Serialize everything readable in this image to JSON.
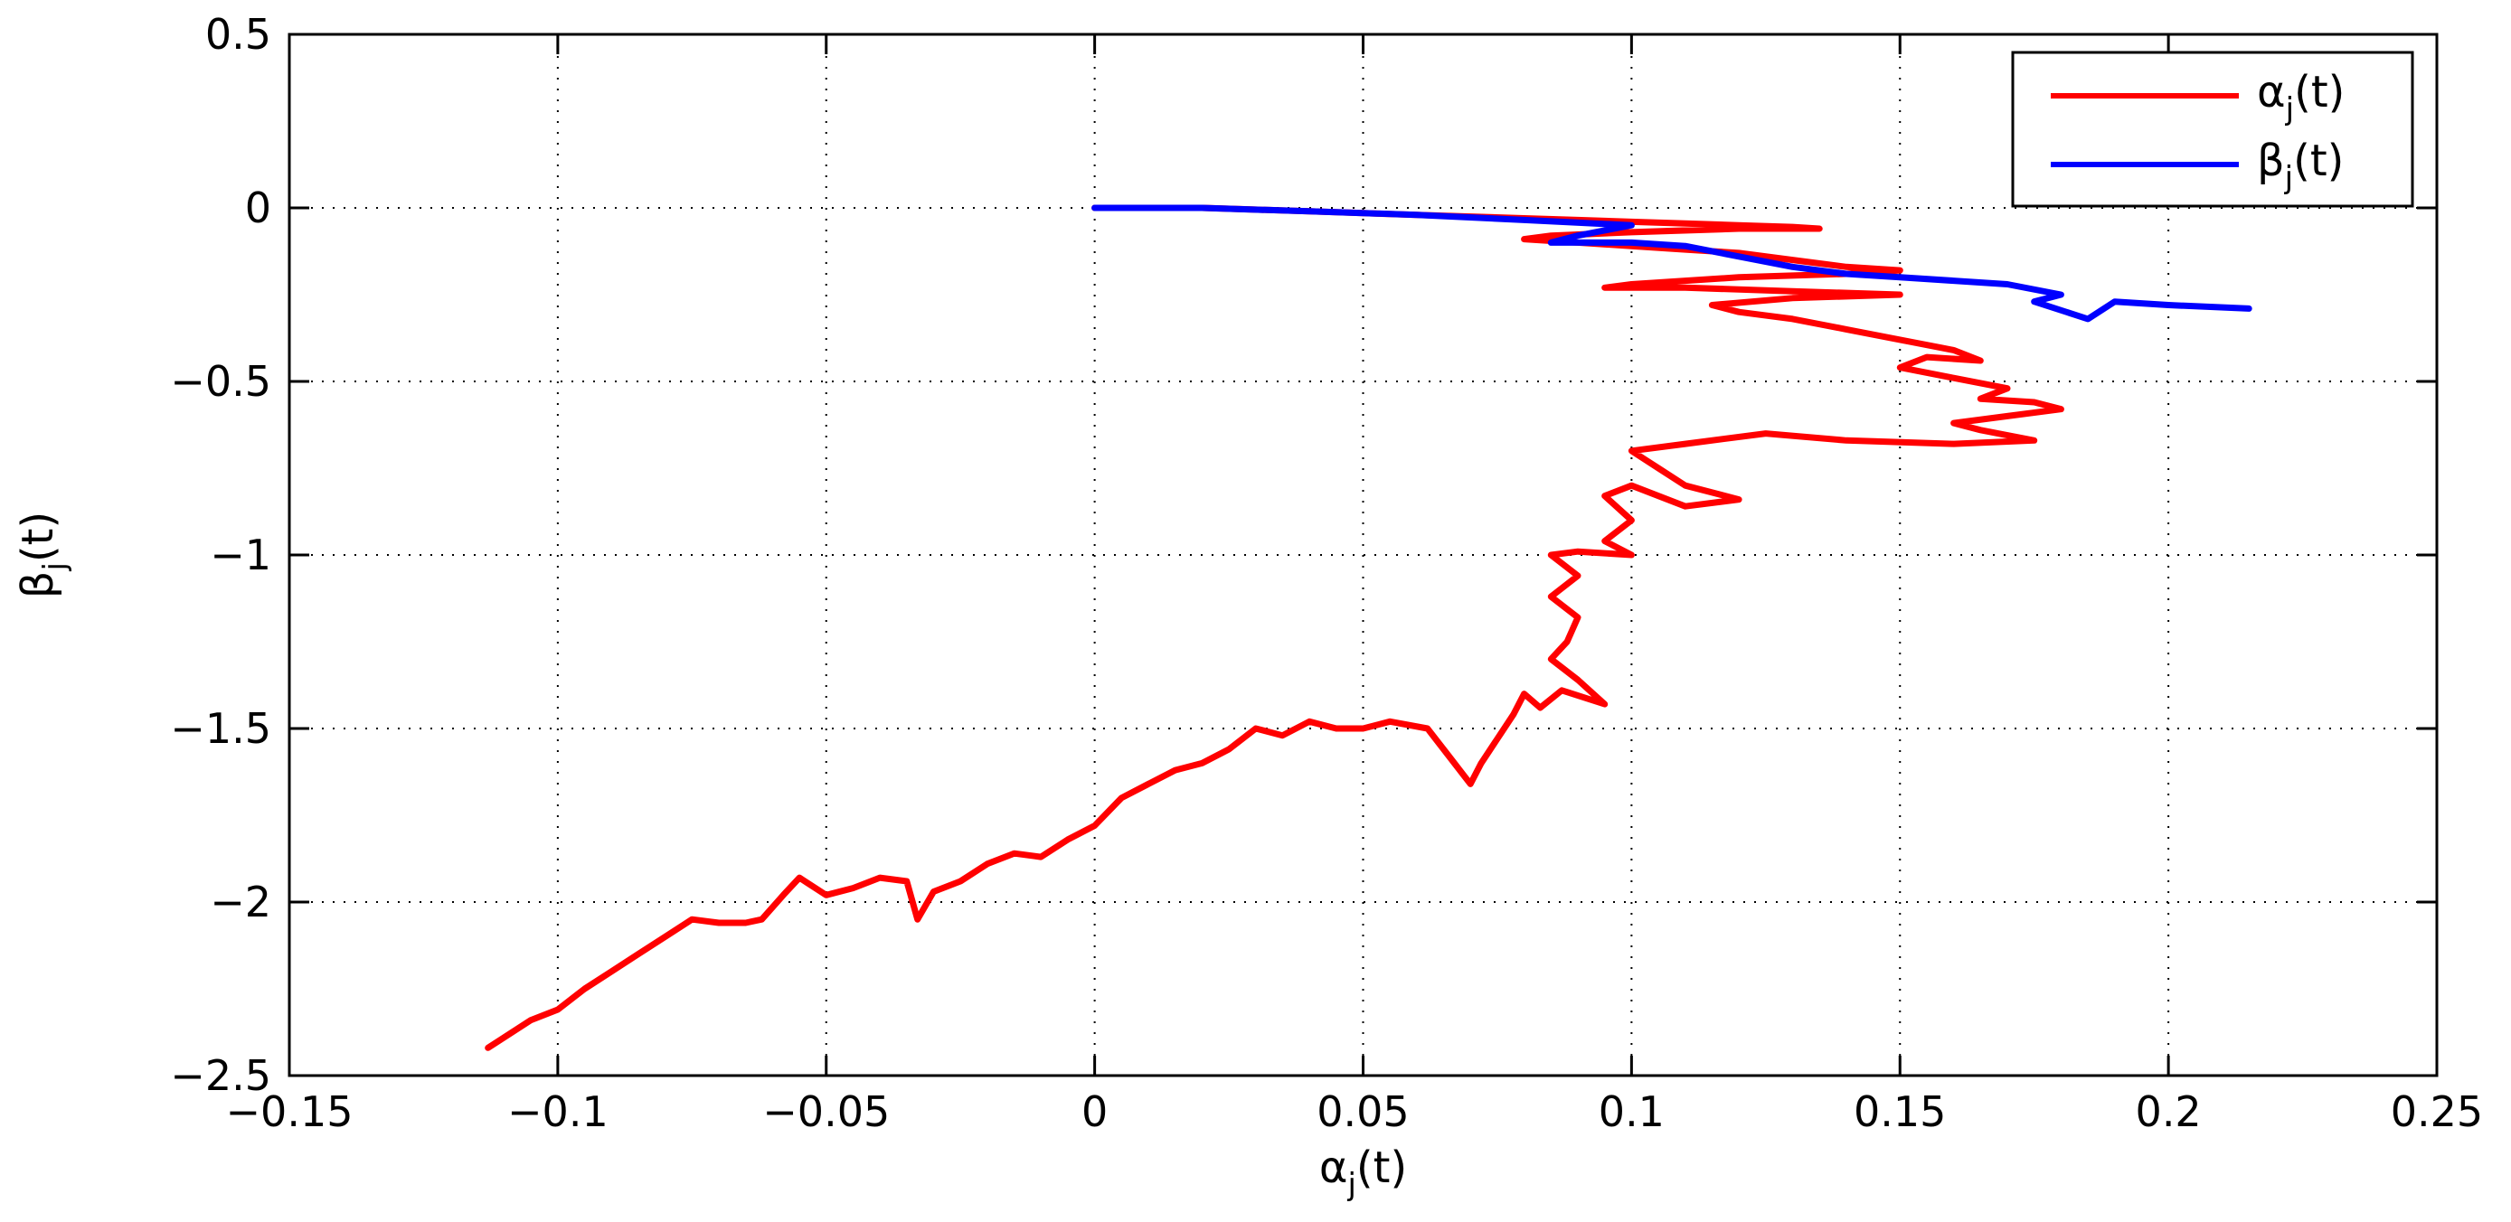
{
  "chart_data": {
    "type": "line",
    "title": "",
    "xlabel_parts": {
      "symbol": "α",
      "sub": "j",
      "rest": "(t)"
    },
    "ylabel_parts": {
      "symbol": "β",
      "sub": "j",
      "rest": "(t)"
    },
    "xlim": [
      -0.15,
      0.25
    ],
    "ylim": [
      -2.5,
      0.5
    ],
    "x_ticks": [
      -0.15,
      -0.1,
      -0.05,
      0,
      0.05,
      0.1,
      0.15,
      0.2,
      0.25
    ],
    "x_tick_labels": [
      "−0.15",
      "−0.1",
      "−0.05",
      "0",
      "0.05",
      "0.1",
      "0.15",
      "0.2",
      "0.25"
    ],
    "y_ticks": [
      0.5,
      0,
      -0.5,
      -1,
      -1.5,
      -2,
      -2.5
    ],
    "y_tick_labels": [
      "0.5",
      "0",
      "−0.5",
      "−1",
      "−1.5",
      "−2",
      "−2.5"
    ],
    "grid": true,
    "legend_position": "top-right",
    "series": [
      {
        "name_parts": {
          "symbol": "α",
          "sub": "j",
          "rest": "(t)"
        },
        "color": "#ff0000",
        "points": [
          [
            0.0,
            0.0
          ],
          [
            0.01,
            0.0
          ],
          [
            0.02,
            0.0
          ],
          [
            0.03,
            -0.005
          ],
          [
            0.04,
            -0.01
          ],
          [
            0.05,
            -0.015
          ],
          [
            0.06,
            -0.02
          ],
          [
            0.07,
            -0.025
          ],
          [
            0.08,
            -0.03
          ],
          [
            0.09,
            -0.035
          ],
          [
            0.1,
            -0.04
          ],
          [
            0.11,
            -0.045
          ],
          [
            0.12,
            -0.05
          ],
          [
            0.13,
            -0.055
          ],
          [
            0.135,
            -0.06
          ],
          [
            0.12,
            -0.06
          ],
          [
            0.1,
            -0.07
          ],
          [
            0.085,
            -0.08
          ],
          [
            0.08,
            -0.09
          ],
          [
            0.09,
            -0.1
          ],
          [
            0.1,
            -0.11
          ],
          [
            0.11,
            -0.12
          ],
          [
            0.12,
            -0.13
          ],
          [
            0.13,
            -0.15
          ],
          [
            0.14,
            -0.17
          ],
          [
            0.15,
            -0.18
          ],
          [
            0.14,
            -0.19
          ],
          [
            0.12,
            -0.2
          ],
          [
            0.11,
            -0.21
          ],
          [
            0.1,
            -0.22
          ],
          [
            0.095,
            -0.23
          ],
          [
            0.11,
            -0.23
          ],
          [
            0.13,
            -0.24
          ],
          [
            0.15,
            -0.25
          ],
          [
            0.13,
            -0.26
          ],
          [
            0.115,
            -0.28
          ],
          [
            0.12,
            -0.3
          ],
          [
            0.13,
            -0.32
          ],
          [
            0.14,
            -0.35
          ],
          [
            0.15,
            -0.38
          ],
          [
            0.16,
            -0.41
          ],
          [
            0.165,
            -0.44
          ],
          [
            0.155,
            -0.43
          ],
          [
            0.15,
            -0.46
          ],
          [
            0.16,
            -0.49
          ],
          [
            0.17,
            -0.52
          ],
          [
            0.165,
            -0.55
          ],
          [
            0.175,
            -0.56
          ],
          [
            0.18,
            -0.58
          ],
          [
            0.17,
            -0.6
          ],
          [
            0.16,
            -0.62
          ],
          [
            0.165,
            -0.64
          ],
          [
            0.175,
            -0.67
          ],
          [
            0.16,
            -0.68
          ],
          [
            0.14,
            -0.67
          ],
          [
            0.125,
            -0.65
          ],
          [
            0.11,
            -0.68
          ],
          [
            0.1,
            -0.7
          ],
          [
            0.105,
            -0.75
          ],
          [
            0.11,
            -0.8
          ],
          [
            0.12,
            -0.84
          ],
          [
            0.11,
            -0.86
          ],
          [
            0.1,
            -0.8
          ],
          [
            0.095,
            -0.83
          ],
          [
            0.1,
            -0.9
          ],
          [
            0.095,
            -0.96
          ],
          [
            0.1,
            -1.0
          ],
          [
            0.09,
            -0.99
          ],
          [
            0.085,
            -1.0
          ],
          [
            0.09,
            -1.06
          ],
          [
            0.085,
            -1.12
          ],
          [
            0.09,
            -1.18
          ],
          [
            0.088,
            -1.25
          ],
          [
            0.085,
            -1.3
          ],
          [
            0.09,
            -1.36
          ],
          [
            0.095,
            -1.43
          ],
          [
            0.087,
            -1.39
          ],
          [
            0.083,
            -1.44
          ],
          [
            0.08,
            -1.4
          ],
          [
            0.078,
            -1.46
          ],
          [
            0.075,
            -1.53
          ],
          [
            0.072,
            -1.6
          ],
          [
            0.07,
            -1.66
          ],
          [
            0.066,
            -1.58
          ],
          [
            0.062,
            -1.5
          ],
          [
            0.055,
            -1.48
          ],
          [
            0.05,
            -1.5
          ],
          [
            0.045,
            -1.5
          ],
          [
            0.04,
            -1.48
          ],
          [
            0.035,
            -1.52
          ],
          [
            0.03,
            -1.5
          ],
          [
            0.025,
            -1.56
          ],
          [
            0.02,
            -1.6
          ],
          [
            0.015,
            -1.62
          ],
          [
            0.01,
            -1.66
          ],
          [
            0.005,
            -1.7
          ],
          [
            0.0,
            -1.78
          ],
          [
            -0.005,
            -1.82
          ],
          [
            -0.01,
            -1.87
          ],
          [
            -0.015,
            -1.86
          ],
          [
            -0.02,
            -1.89
          ],
          [
            -0.025,
            -1.94
          ],
          [
            -0.03,
            -1.97
          ],
          [
            -0.033,
            -2.05
          ],
          [
            -0.035,
            -1.94
          ],
          [
            -0.04,
            -1.93
          ],
          [
            -0.045,
            -1.96
          ],
          [
            -0.05,
            -1.98
          ],
          [
            -0.055,
            -1.93
          ],
          [
            -0.058,
            -1.98
          ],
          [
            -0.062,
            -2.05
          ],
          [
            -0.065,
            -2.06
          ],
          [
            -0.07,
            -2.06
          ],
          [
            -0.075,
            -2.05
          ],
          [
            -0.08,
            -2.1
          ],
          [
            -0.085,
            -2.15
          ],
          [
            -0.09,
            -2.2
          ],
          [
            -0.095,
            -2.25
          ],
          [
            -0.1,
            -2.31
          ],
          [
            -0.105,
            -2.34
          ],
          [
            -0.11,
            -2.39
          ],
          [
            -0.113,
            -2.42
          ]
        ]
      },
      {
        "name_parts": {
          "symbol": "β",
          "sub": "j",
          "rest": "(t)"
        },
        "color": "#0000ff",
        "points": [
          [
            0.0,
            0.0
          ],
          [
            0.02,
            0.0
          ],
          [
            0.04,
            -0.01
          ],
          [
            0.06,
            -0.02
          ],
          [
            0.08,
            -0.035
          ],
          [
            0.1,
            -0.05
          ],
          [
            0.09,
            -0.08
          ],
          [
            0.085,
            -0.1
          ],
          [
            0.1,
            -0.1
          ],
          [
            0.11,
            -0.11
          ],
          [
            0.12,
            -0.14
          ],
          [
            0.13,
            -0.17
          ],
          [
            0.14,
            -0.19
          ],
          [
            0.15,
            -0.2
          ],
          [
            0.16,
            -0.21
          ],
          [
            0.17,
            -0.22
          ],
          [
            0.18,
            -0.25
          ],
          [
            0.175,
            -0.27
          ],
          [
            0.185,
            -0.32
          ],
          [
            0.19,
            -0.27
          ],
          [
            0.2,
            -0.28
          ],
          [
            0.215,
            -0.29
          ]
        ]
      }
    ]
  }
}
